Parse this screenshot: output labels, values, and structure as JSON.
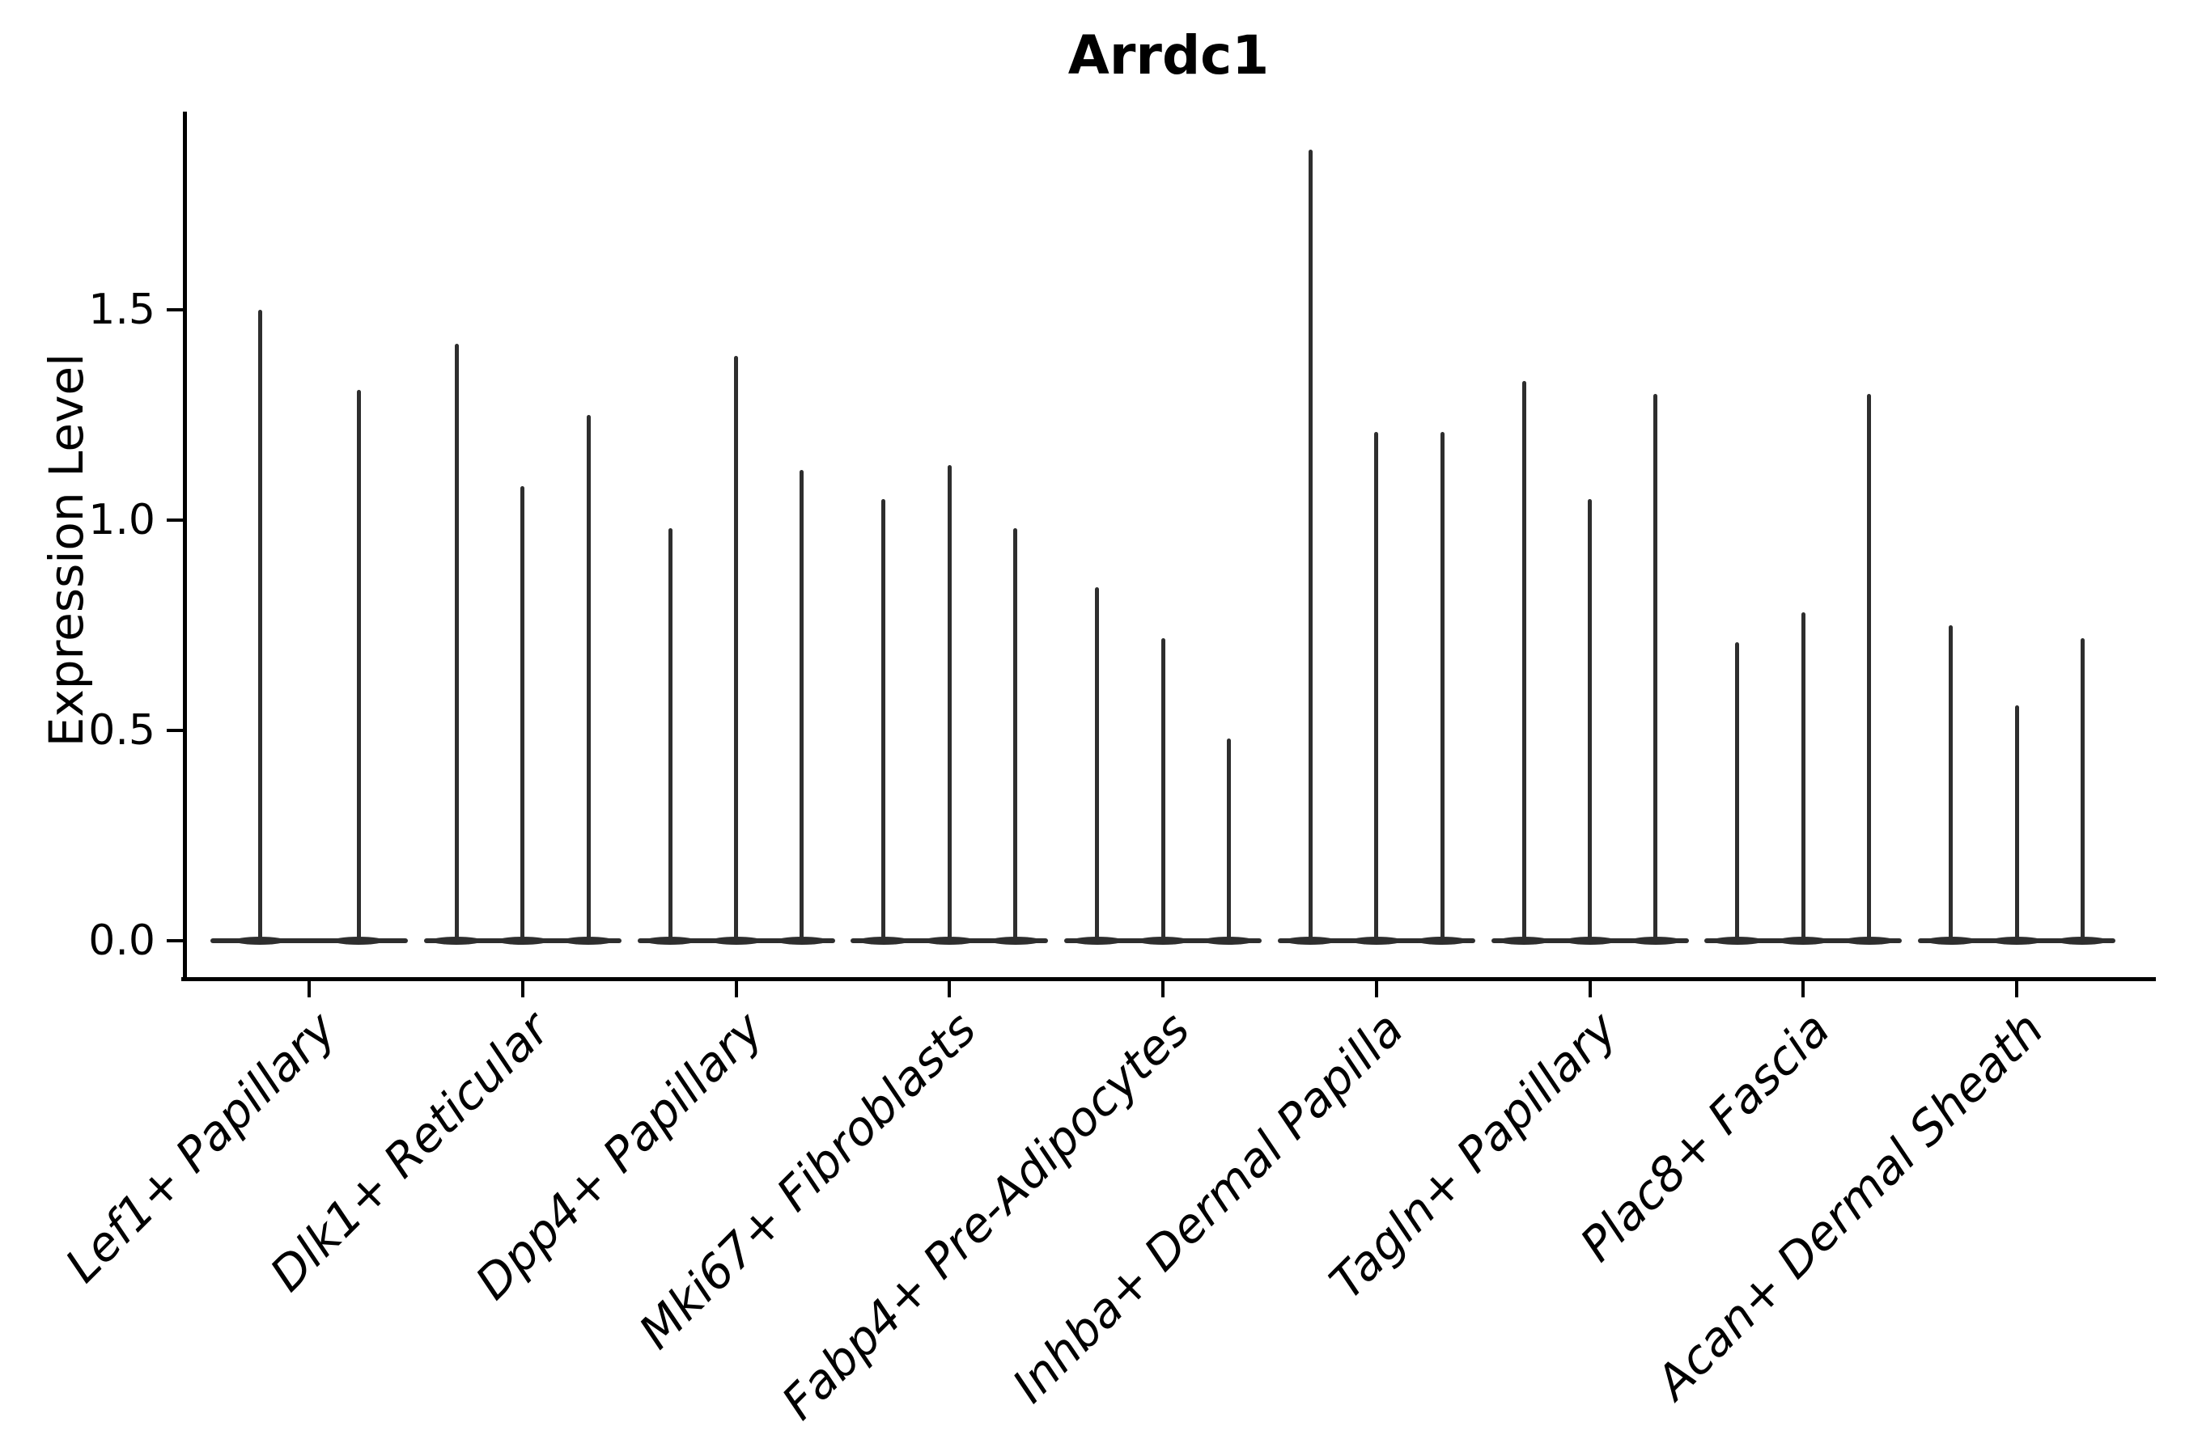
{
  "title": "Arrdc1",
  "y_axis": {
    "label": "Expression Level",
    "tick_labels": [
      "0.0",
      "0.5",
      "1.0",
      "1.5"
    ],
    "tick_values": [
      0.0,
      0.5,
      1.0,
      1.5
    ]
  },
  "x_axis": {
    "tick_labels": [
      "Lef1+ Papillary",
      "Dlk1+ Reticular",
      "Dpp4+ Papillary",
      "Mki67+ Fibroblasts",
      "Fabp4+ Pre-Adipocytes",
      "Inhba+ Dermal Papilla",
      "Tagln+ Papillary",
      "Plac8+ Fascia",
      "Acan+ Dermal Sheath"
    ]
  },
  "chart_data": {
    "type": "violin",
    "title": "Arrdc1",
    "xlabel": "",
    "ylabel": "Expression Level",
    "ylim": [
      -0.09,
      1.97
    ],
    "y_ticks": [
      0.0,
      0.5,
      1.0,
      1.5
    ],
    "grid": false,
    "legend": null,
    "violin_color": "#2e2e2e",
    "axis_color": "#000000",
    "background_color": "#ffffff",
    "categories": [
      "Lef1+ Papillary",
      "Dlk1+ Reticular",
      "Dpp4+ Papillary",
      "Mki67+ Fibroblasts",
      "Fabp4+ Pre-Adipocytes",
      "Inhba+ Dermal Papilla",
      "Tagln+ Papillary",
      "Plac8+ Fascia",
      "Acan+ Dermal Sheath"
    ],
    "groups": [
      {
        "category": "Lef1+ Papillary",
        "violin_max_values": [
          1.5,
          1.31
        ]
      },
      {
        "category": "Dlk1+ Reticular",
        "violin_max_values": [
          1.42,
          1.08,
          1.25
        ]
      },
      {
        "category": "Dpp4+ Papillary",
        "violin_max_values": [
          0.98,
          1.39,
          1.12
        ]
      },
      {
        "category": "Mki67+ Fibroblasts",
        "violin_max_values": [
          1.05,
          1.13,
          0.98
        ]
      },
      {
        "category": "Fabp4+ Pre-Adipocytes",
        "violin_max_values": [
          0.84,
          0.72,
          0.48
        ]
      },
      {
        "category": "Inhba+ Dermal Papilla",
        "violin_max_values": [
          1.88,
          1.21,
          1.21
        ]
      },
      {
        "category": "Tagln+ Papillary",
        "violin_max_values": [
          1.33,
          1.05,
          1.3
        ]
      },
      {
        "category": "Plac8+ Fascia",
        "violin_max_values": [
          0.71,
          0.78,
          1.3
        ]
      },
      {
        "category": "Acan+ Dermal Sheath",
        "violin_max_values": [
          0.75,
          0.56,
          0.72
        ]
      }
    ],
    "note": "Each violin is a near-zero-width distribution: a flat lens at expression 0 with a thin vertical spike up to the max expression value."
  }
}
